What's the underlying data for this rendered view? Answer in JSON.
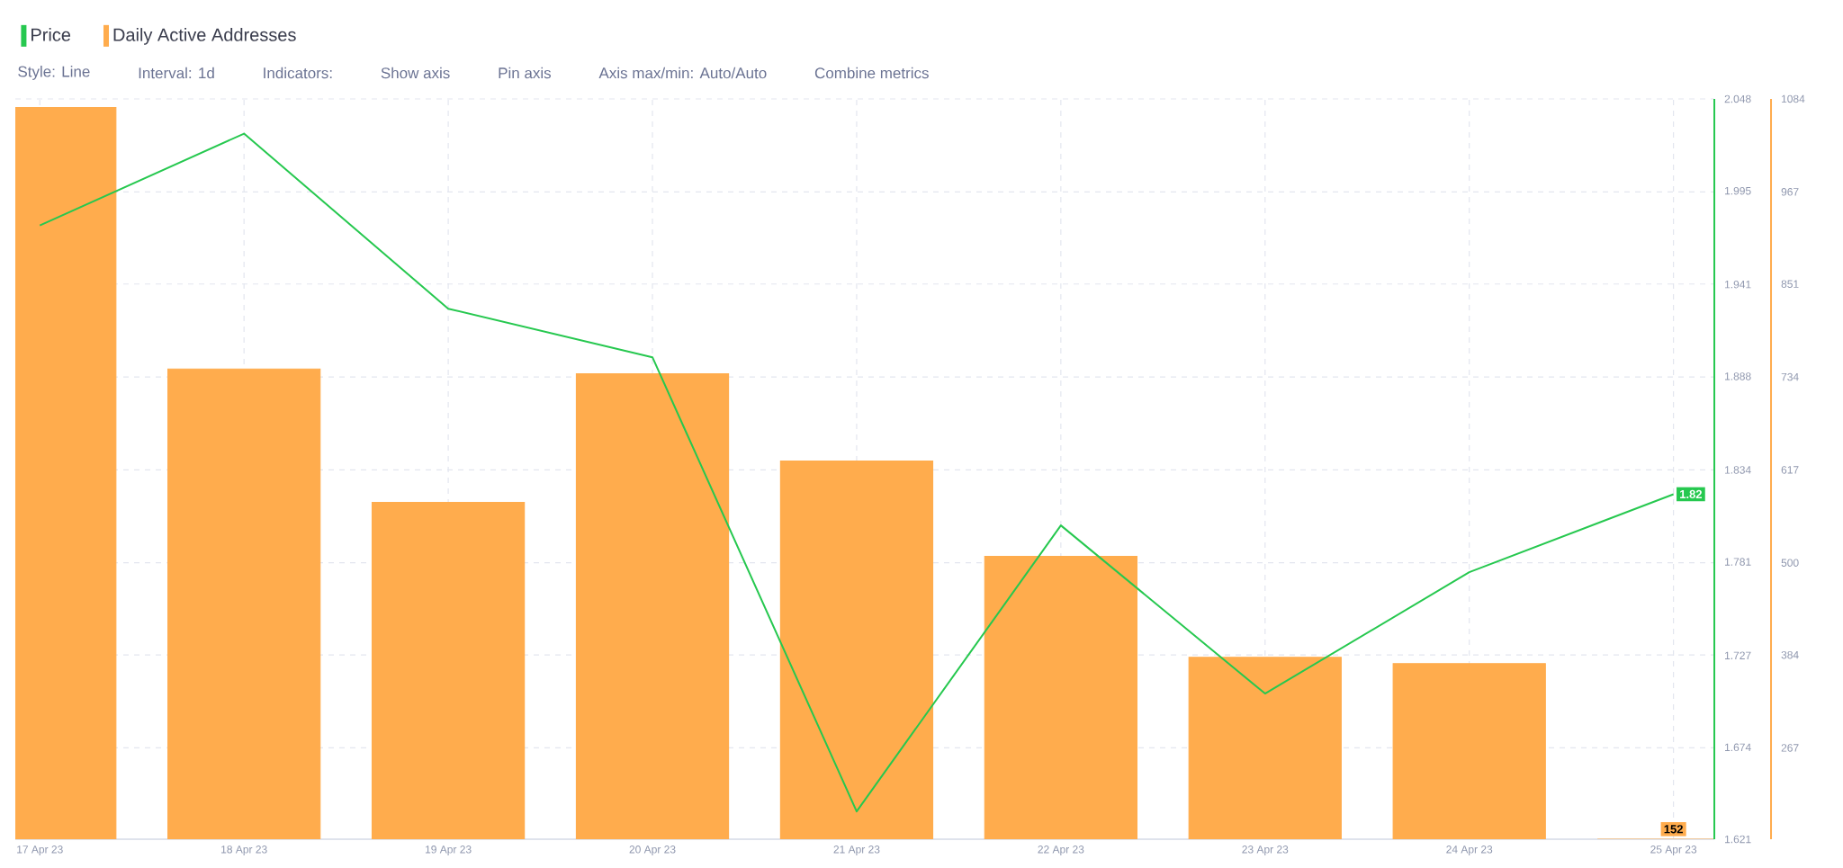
{
  "chart_data": {
    "type": "bar",
    "categories": [
      "17 Apr 23",
      "18 Apr 23",
      "19 Apr 23",
      "20 Apr 23",
      "21 Apr 23",
      "22 Apr 23",
      "23 Apr 23",
      "24 Apr 23",
      "25 Apr 23"
    ],
    "series": [
      {
        "name": "Price",
        "type": "line",
        "color": "#26c84f",
        "values": [
          1.975,
          2.028,
          1.927,
          1.899,
          1.637,
          1.802,
          1.705,
          1.775,
          1.82
        ],
        "value_labels": [
          null,
          null,
          null,
          null,
          null,
          null,
          null,
          null,
          "1.82"
        ]
      },
      {
        "name": "Daily Active Addresses",
        "axis": "y2",
        "color": "#ffac4d",
        "values": [
          1073,
          744,
          576,
          738,
          628,
          508,
          381,
          373,
          152
        ],
        "value_labels": [
          null,
          null,
          null,
          null,
          null,
          null,
          null,
          null,
          "152"
        ]
      }
    ],
    "ylim": [
      1.621,
      2.048
    ],
    "yticks": [
      1.621,
      1.674,
      1.727,
      1.781,
      1.834,
      1.888,
      1.941,
      1.995,
      2.048
    ],
    "y2lim": [
      152,
      1084
    ],
    "y2ticks": [
      267,
      384,
      500,
      617,
      734,
      851,
      967,
      1084
    ],
    "grid": true,
    "legend": "top left",
    "annotations": [
      "Style: Line",
      "Interval: 1d",
      "Indicators:",
      "Show axis",
      "Pin axis",
      "Axis max/min: Auto/Auto",
      "Combine metrics"
    ]
  }
}
